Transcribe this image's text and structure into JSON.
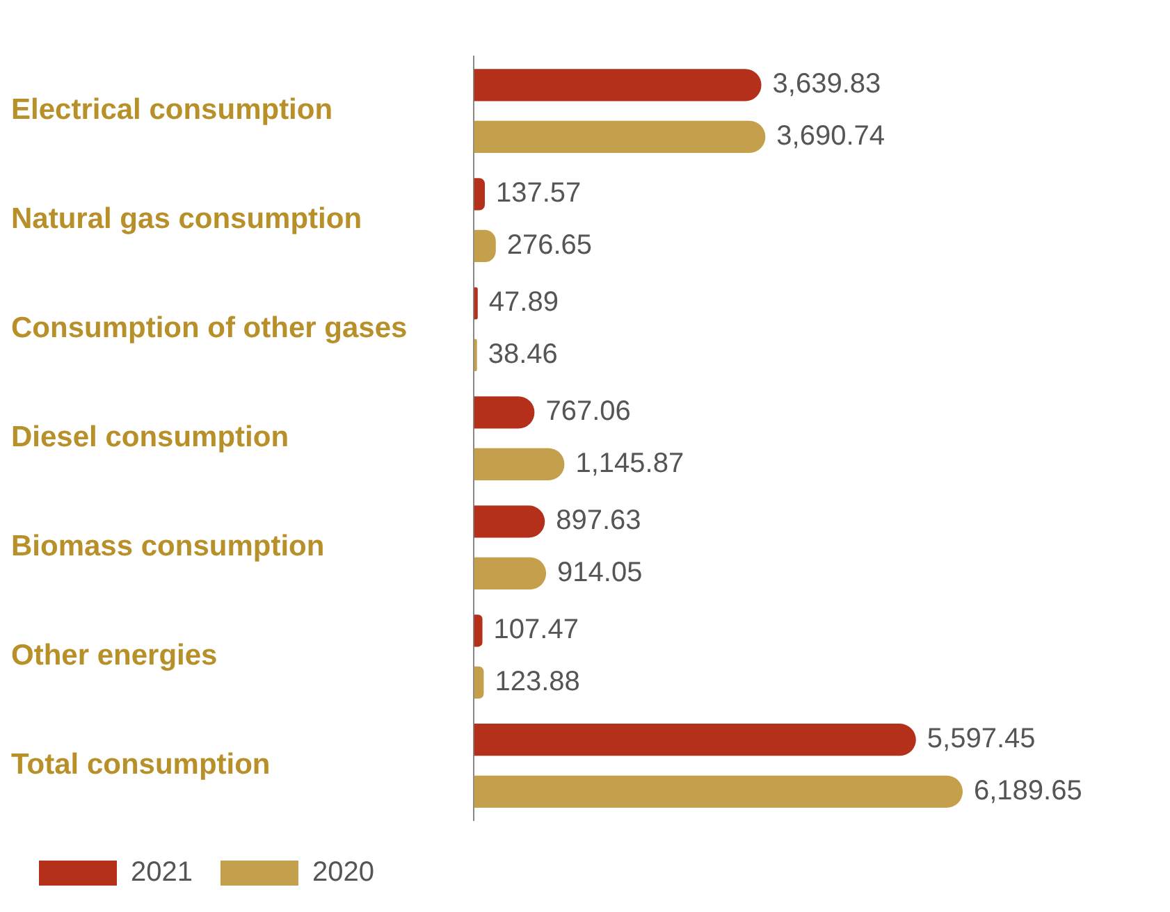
{
  "chart_data": {
    "type": "bar",
    "orientation": "horizontal",
    "categories": [
      "Electrical consumption",
      "Natural gas consumption",
      "Consumption of other gases",
      "Diesel consumption",
      "Biomass consumption",
      "Other energies",
      "Total consumption"
    ],
    "series": [
      {
        "name": "2021",
        "color": "#b5301a",
        "values": [
          3639.83,
          137.57,
          47.89,
          767.06,
          897.63,
          107.47,
          5597.45
        ],
        "value_labels": [
          "3,639.83",
          "137.57",
          "47.89",
          "767.06",
          "897.63",
          "107.47",
          "5,597.45"
        ]
      },
      {
        "name": "2020",
        "color": "#c49f4c",
        "values": [
          3690.74,
          276.65,
          38.46,
          1145.87,
          914.05,
          123.88,
          6189.65
        ],
        "value_labels": [
          "3,690.74",
          "276.65",
          "38.46",
          "1,145.87",
          "914.05",
          "123.88",
          "6,189.65"
        ]
      }
    ],
    "legend": "bottom left",
    "grid": false
  }
}
